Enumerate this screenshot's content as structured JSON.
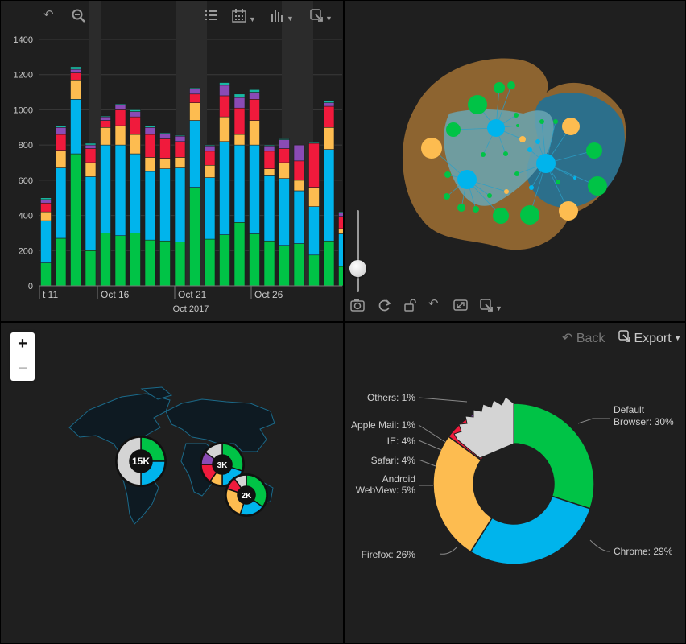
{
  "toolbar1": {
    "undo_icon": "undo-icon",
    "zoom_out_icon": "zoom-out-icon",
    "legend_icon": "legend-list-icon",
    "calendar_icon": "calendar-icon",
    "bars_icon": "bar-chart-icon",
    "export_icon": "export-icon"
  },
  "chart_data": [
    {
      "type": "bar",
      "stacked": true,
      "x_label": "Oct 2017",
      "x_ticks": [
        "t 11",
        "Oct 16",
        "Oct 21",
        "Oct 26"
      ],
      "y_ticks": [
        "0",
        "200",
        "400",
        "600",
        "800",
        "1000",
        "1200",
        "1400"
      ],
      "ylim": [
        0,
        1400
      ],
      "grid": true,
      "series_colors": [
        "#00c346",
        "#00b4ec",
        "#fdbc50",
        "#f01a3c",
        "#8a4bb5",
        "#18b8a2"
      ],
      "stacks": [
        [
          130,
          240,
          50,
          50,
          20,
          10
        ],
        [
          270,
          400,
          100,
          90,
          40,
          10
        ],
        [
          750,
          310,
          110,
          40,
          20,
          15
        ],
        [
          200,
          420,
          80,
          80,
          20,
          10
        ],
        [
          300,
          500,
          100,
          40,
          20,
          5
        ],
        [
          285,
          515,
          110,
          90,
          30,
          5
        ],
        [
          300,
          450,
          110,
          100,
          30,
          10
        ],
        [
          260,
          390,
          80,
          130,
          40,
          10
        ],
        [
          255,
          410,
          60,
          110,
          30,
          5
        ],
        [
          250,
          420,
          60,
          90,
          30,
          5
        ],
        [
          560,
          380,
          100,
          50,
          30,
          5
        ],
        [
          265,
          350,
          70,
          80,
          30,
          5
        ],
        [
          290,
          530,
          140,
          120,
          60,
          15
        ],
        [
          360,
          440,
          60,
          150,
          60,
          20
        ],
        [
          295,
          505,
          140,
          120,
          40,
          15
        ],
        [
          255,
          370,
          40,
          100,
          30,
          5
        ],
        [
          230,
          380,
          90,
          80,
          50,
          5
        ],
        [
          240,
          300,
          60,
          110,
          90,
          0
        ],
        [
          175,
          275,
          110,
          250,
          0,
          5
        ],
        [
          255,
          520,
          125,
          120,
          20,
          10
        ],
        [
          110,
          185,
          30,
          70,
          20,
          5
        ]
      ]
    },
    {
      "type": "pie",
      "labels": [
        "Default Browser: 30%",
        "Chrome: 29%",
        "Firefox: 26%",
        "Android WebView: 5%",
        "Safari: 4%",
        "IE: 4%",
        "Apple Mail: 1%",
        "Others: 1%"
      ],
      "values": [
        30,
        29,
        26,
        5,
        4,
        4,
        1,
        1
      ],
      "colors": [
        "#00c346",
        "#00b4ec",
        "#fdbc50",
        "#f01a3c",
        "#8a4bb5",
        "#18b8a2",
        "#3954c8",
        "#d4d4d4"
      ]
    }
  ],
  "network": {
    "hull_colors": [
      "#8d6430",
      "#2c6f8b",
      "#6aa6b3"
    ],
    "node_colors": {
      "green": "#00c346",
      "blue": "#00b4ec",
      "orange": "#fdbc50"
    }
  },
  "toolbar2": {
    "snapshot_icon": "snapshot-icon",
    "refresh_icon": "refresh-icon",
    "unlock_icon": "unlock-icon",
    "undo_icon": "undo-icon",
    "fit_icon": "fit-screen-icon",
    "export_icon": "export-icon"
  },
  "map": {
    "zoom_in": "+",
    "zoom_out": "−",
    "clusters": [
      {
        "label": "15K"
      },
      {
        "label": "3K"
      },
      {
        "label": "2K"
      }
    ]
  },
  "pie_panel": {
    "back_label": "Back",
    "export_label": "Export",
    "slice_labels": {
      "default": "Default",
      "browser": "Browser: 30%",
      "chrome": "Chrome: 29%",
      "firefox": "Firefox: 26%",
      "android": "Android",
      "webview": "WebView: 5%",
      "safari": "Safari: 4%",
      "ie": "IE: 4%",
      "applemail": "Apple Mail: 1%",
      "others": "Others: 1%"
    }
  }
}
